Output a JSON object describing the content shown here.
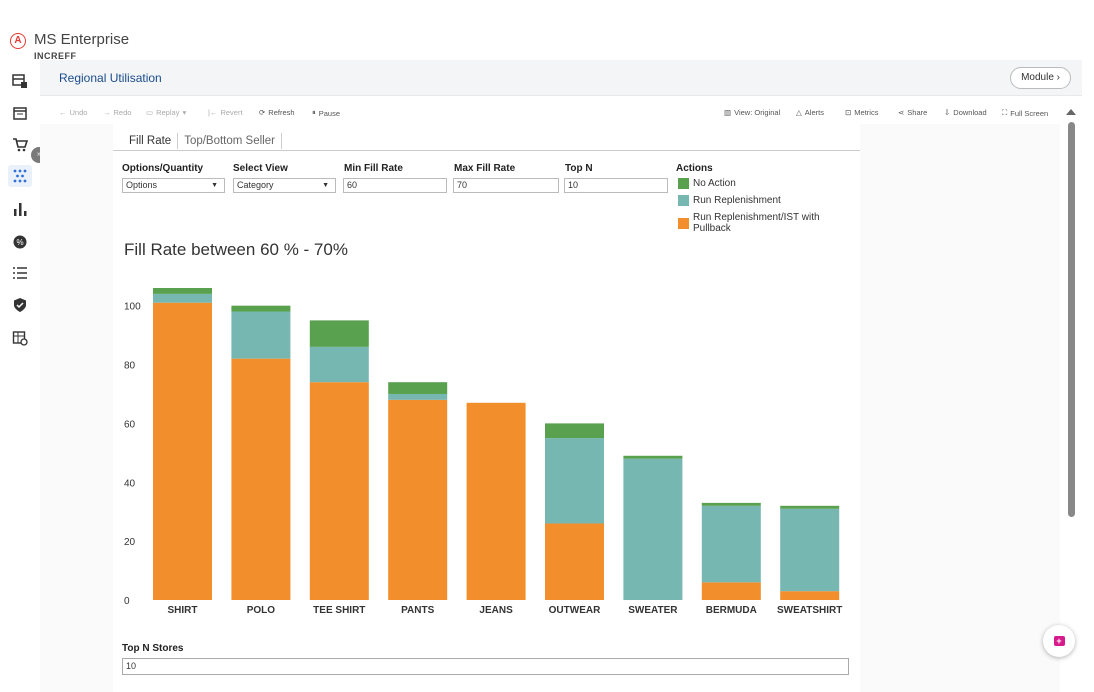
{
  "app": {
    "logo_glyph": "A",
    "title": "MS Enterprise",
    "org": "INCREFF"
  },
  "sidebar": {
    "collapse_glyph": "»",
    "items": [
      {
        "name": "dashboard-icon"
      },
      {
        "name": "calendar-icon"
      },
      {
        "name": "cart-icon"
      },
      {
        "name": "network-icon",
        "active": true
      },
      {
        "name": "bar-chart-icon"
      },
      {
        "name": "badge-icon"
      },
      {
        "name": "list-icon"
      },
      {
        "name": "shield-icon"
      },
      {
        "name": "table-icon"
      }
    ]
  },
  "header": {
    "title": "Regional Utilisation",
    "module_label": "Module ›"
  },
  "toolbar": {
    "undo": "Undo",
    "redo": "Redo",
    "replay": "Replay",
    "revert": "Revert",
    "refresh": "Refresh",
    "pause": "Pause",
    "view": "View: Original",
    "alerts": "Alerts",
    "metrics": "Metrics",
    "share": "Share",
    "download": "Download",
    "fullscreen": "Full Screen"
  },
  "tabs": [
    "Fill Rate",
    "Top/Bottom Seller"
  ],
  "filters": {
    "options_label": "Options/Quantity",
    "options_value": "Options",
    "view_label": "Select View",
    "view_value": "Category",
    "min_label": "Min Fill Rate",
    "min_value": "60",
    "max_label": "Max Fill Rate",
    "max_value": "70",
    "topn_label": "Top N",
    "topn_value": "10"
  },
  "actions": {
    "label": "Actions",
    "items": [
      {
        "label": "No Action",
        "color": "#59a14f"
      },
      {
        "label": "Run Replenishment",
        "color": "#76b7b2"
      },
      {
        "label": "Run Replenishment/IST with Pullback",
        "color": "#f28e2b"
      }
    ]
  },
  "chart_data": {
    "type": "bar",
    "stacked": true,
    "title": "Fill Rate between 60 % - 70%",
    "categories": [
      "SHIRT",
      "POLO",
      "TEE SHIRT",
      "PANTS",
      "JEANS",
      "OUTWEAR",
      "SWEATER",
      "BERMUDA",
      "SWEATSHIRT"
    ],
    "series": [
      {
        "name": "Run Replenishment/IST with Pullback",
        "color": "#f28e2b",
        "values": [
          101,
          82,
          74,
          68,
          67,
          26,
          0,
          6,
          3
        ]
      },
      {
        "name": "Run Replenishment",
        "color": "#76b7b2",
        "values": [
          3,
          16,
          12,
          2,
          0,
          29,
          48,
          26,
          28
        ]
      },
      {
        "name": "No Action",
        "color": "#59a14f",
        "values": [
          2,
          2,
          9,
          4,
          0,
          5,
          1,
          1,
          1
        ]
      }
    ],
    "yticks": [
      0,
      20,
      40,
      60,
      80,
      100
    ],
    "ylim": [
      0,
      106
    ],
    "legend": "top-right"
  },
  "bottom": {
    "topn_stores_label": "Top N Stores",
    "topn_stores_value": "10"
  },
  "fab_glyph": "+"
}
